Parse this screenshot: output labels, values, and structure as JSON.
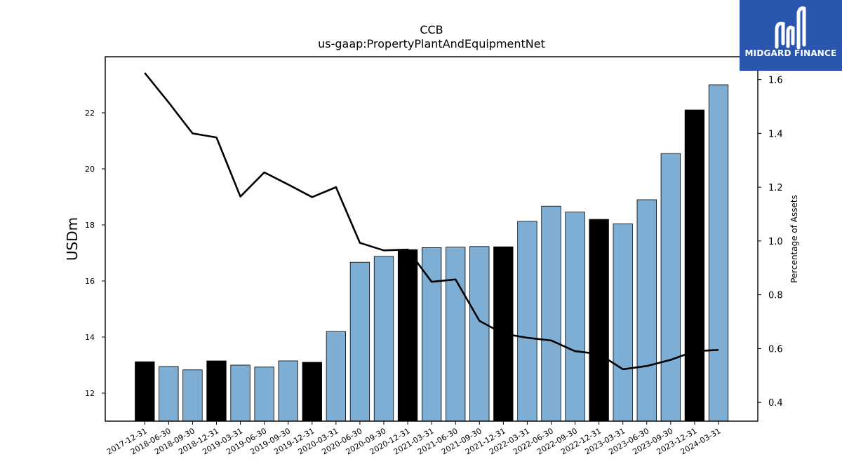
{
  "chart_data": {
    "type": "bar",
    "title": "CCB",
    "subtitle": "us-gaap:PropertyPlantAndEquipmentNet",
    "ylabel": "USDm",
    "y2label": "Percentage of Assets",
    "ylim": [
      11,
      24
    ],
    "y2lim": [
      0.33,
      1.685
    ],
    "yticks": [
      12,
      14,
      16,
      18,
      20,
      22
    ],
    "y2ticks": [
      0.4,
      0.6,
      0.8,
      1.0,
      1.2,
      1.4,
      1.6
    ],
    "categories": [
      "2017-12-31",
      "2018-06-30",
      "2018-09-30",
      "2018-12-31",
      "2019-03-31",
      "2019-06-30",
      "2019-09-30",
      "2019-12-31",
      "2020-03-31",
      "2020-06-30",
      "2020-09-30",
      "2020-12-31",
      "2021-03-31",
      "2021-06-30",
      "2021-09-30",
      "2021-12-31",
      "2022-03-31",
      "2022-06-30",
      "2022-09-30",
      "2022-12-31",
      "2023-03-31",
      "2023-06-30",
      "2023-09-30",
      "2023-12-31",
      "2024-03-31"
    ],
    "series": [
      {
        "type": "bar",
        "values": [
          13.12,
          12.95,
          12.83,
          13.15,
          13.0,
          12.93,
          13.15,
          13.1,
          14.2,
          16.67,
          16.88,
          17.12,
          17.19,
          17.21,
          17.23,
          17.22,
          18.13,
          18.67,
          18.46,
          18.2,
          18.04,
          18.9,
          20.55,
          22.1,
          23.0
        ],
        "annual_color": "#000000",
        "quarter_color": "#7eaed3"
      },
      {
        "type": "line",
        "axis": "right",
        "color": "#000000",
        "values": [
          1.625,
          1.515,
          1.4,
          1.385,
          1.165,
          1.255,
          1.21,
          1.163,
          1.2,
          0.993,
          0.965,
          0.968,
          0.848,
          0.857,
          0.703,
          0.655,
          0.64,
          0.63,
          0.59,
          0.58,
          0.523,
          0.535,
          0.558,
          0.59,
          0.595
        ]
      }
    ],
    "annual": [
      true,
      false,
      false,
      true,
      false,
      false,
      false,
      true,
      false,
      false,
      false,
      true,
      false,
      false,
      false,
      true,
      false,
      false,
      false,
      true,
      false,
      false,
      false,
      true,
      false
    ],
    "grid": false,
    "legend": "none"
  },
  "logo": {
    "text": "MIDGARD FINANCE",
    "color": "#2a56b0"
  }
}
